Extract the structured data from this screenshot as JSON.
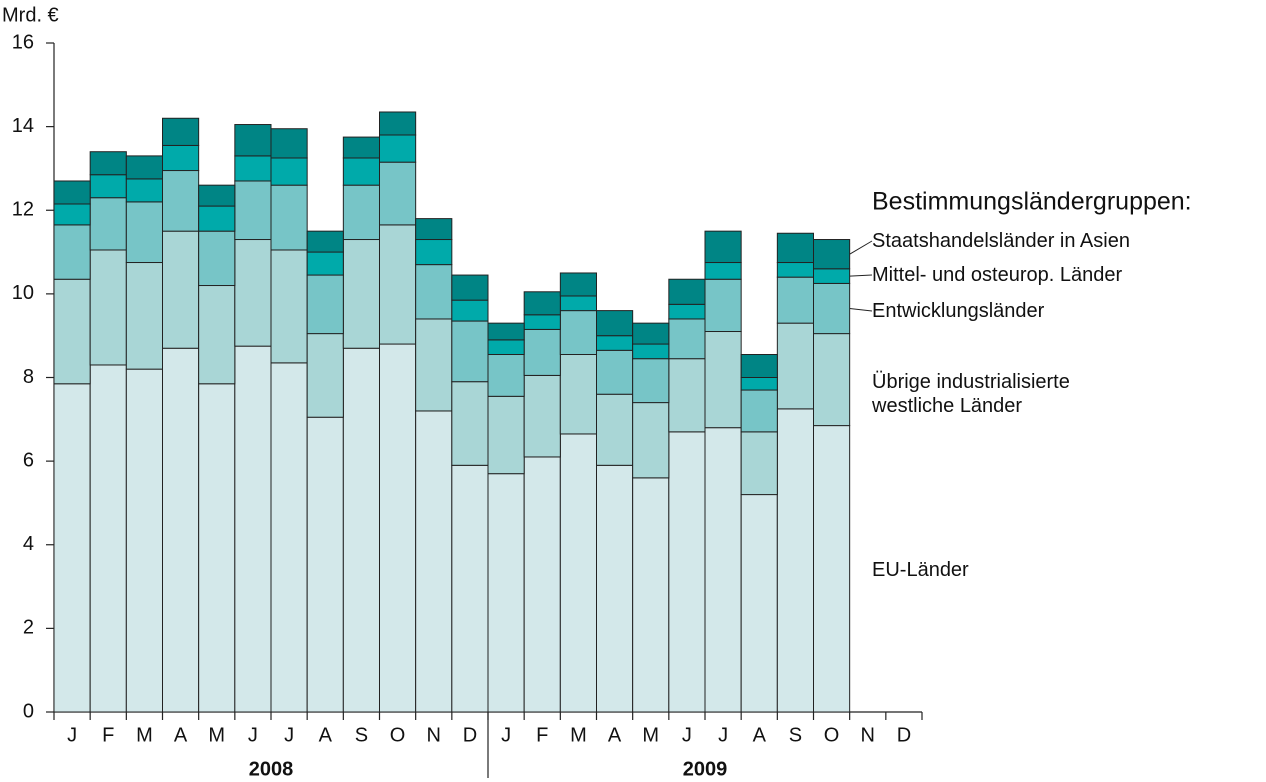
{
  "chart_data": {
    "type": "stacked_bar",
    "y_unit_label": "Mrd. €",
    "legend_title": "Bestimmungsländergruppen:",
    "categories": [
      "J",
      "F",
      "M",
      "A",
      "M",
      "J",
      "J",
      "A",
      "S",
      "O",
      "N",
      "D",
      "J",
      "F",
      "M",
      "A",
      "M",
      "J",
      "J",
      "A",
      "S",
      "O",
      "N",
      "D"
    ],
    "year_labels": [
      "2008",
      "2009"
    ],
    "ylim": [
      0,
      16
    ],
    "yticks": [
      0,
      2,
      4,
      6,
      8,
      10,
      12,
      14,
      16
    ],
    "series": [
      {
        "name": "EU-Länder",
        "color": "#d3e8ea",
        "values": [
          7.85,
          8.3,
          8.2,
          8.7,
          7.85,
          8.75,
          8.35,
          7.05,
          8.7,
          8.8,
          7.2,
          5.9,
          5.7,
          6.1,
          6.65,
          5.9,
          5.6,
          6.7,
          6.8,
          5.2,
          7.25,
          6.85,
          null,
          null
        ]
      },
      {
        "name": "Übrige industrialisierte westliche Länder",
        "color": "#a9d6d6",
        "values": [
          2.5,
          2.75,
          2.55,
          2.8,
          2.35,
          2.55,
          2.7,
          2.0,
          2.6,
          2.85,
          2.2,
          2.0,
          1.85,
          1.95,
          1.9,
          1.7,
          1.8,
          1.75,
          2.3,
          1.5,
          2.05,
          2.2,
          null,
          null
        ]
      },
      {
        "name": "Entwicklungsländer",
        "color": "#77c5c7",
        "values": [
          1.3,
          1.25,
          1.45,
          1.45,
          1.3,
          1.4,
          1.55,
          1.4,
          1.3,
          1.5,
          1.3,
          1.45,
          1.0,
          1.1,
          1.05,
          1.05,
          1.05,
          0.95,
          1.25,
          1.0,
          1.1,
          1.2,
          null,
          null
        ]
      },
      {
        "name": "Mittel- und osteurop. Länder",
        "color": "#00aaaa",
        "values": [
          0.5,
          0.55,
          0.55,
          0.6,
          0.6,
          0.6,
          0.65,
          0.55,
          0.65,
          0.65,
          0.6,
          0.5,
          0.35,
          0.35,
          0.35,
          0.35,
          0.35,
          0.35,
          0.4,
          0.3,
          0.35,
          0.35,
          null,
          null
        ]
      },
      {
        "name": "Staatshandelsländer in Asien",
        "color": "#008585",
        "values": [
          0.55,
          0.55,
          0.55,
          0.65,
          0.5,
          0.75,
          0.7,
          0.5,
          0.5,
          0.55,
          0.5,
          0.6,
          0.4,
          0.55,
          0.55,
          0.6,
          0.5,
          0.6,
          0.75,
          0.55,
          0.7,
          0.7,
          null,
          null
        ]
      }
    ]
  }
}
